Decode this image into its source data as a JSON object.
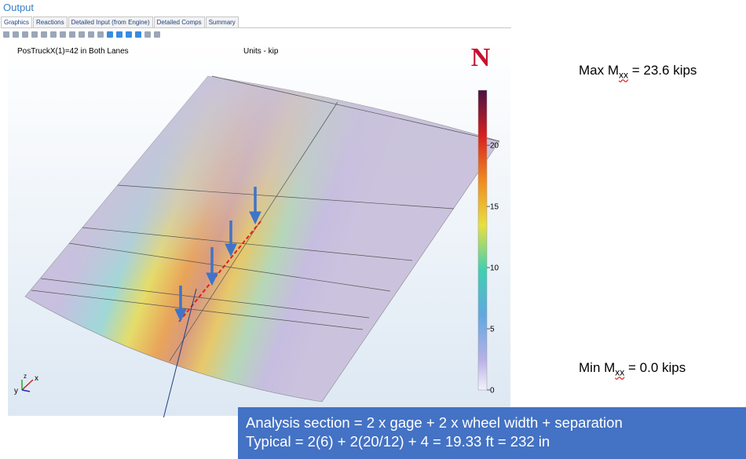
{
  "window": {
    "title": "Output",
    "tabs": [
      "Graphics",
      "Reactions",
      "Detailed Input (from Engine)",
      "Detailed Comps",
      "Summary"
    ]
  },
  "plot": {
    "caption": "PosTruckX(1)=42 in Both Lanes",
    "units": "Units - kip",
    "logo": "N",
    "triad": [
      "y",
      "z",
      "x"
    ],
    "colorbar": {
      "ylim": [
        0,
        24.5
      ],
      "yticks": [
        0,
        5,
        10,
        15,
        20
      ]
    }
  },
  "annotations": {
    "max": {
      "label": "Max M",
      "sub": "xx",
      "value": "= 23.6 kips"
    },
    "min": {
      "label": "Min M",
      "sub": "xx",
      "value": "= 0.0 kips"
    },
    "callout": [
      "Analysis section = 2 x gage + 2 x wheel width + separation",
      "Typical = 2(6) + 2(20/12) + 4 = 19.33 ft = 232 in"
    ]
  }
}
